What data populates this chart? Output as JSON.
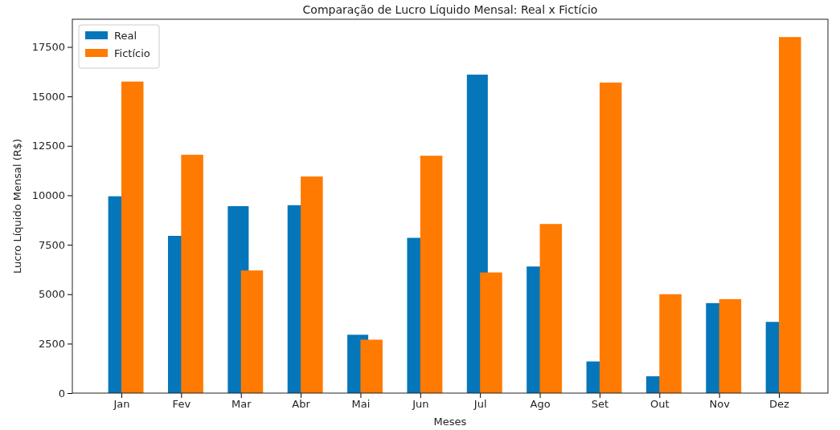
{
  "chart_data": {
    "type": "bar",
    "title": "Comparação de Lucro Líquido Mensal: Real x Fictício",
    "xlabel": "Meses",
    "ylabel": "Lucro Líquido Mensal (R$)",
    "categories": [
      "Jan",
      "Fev",
      "Mar",
      "Abr",
      "Mai",
      "Jun",
      "Jul",
      "Ago",
      "Set",
      "Out",
      "Nov",
      "Dez"
    ],
    "series": [
      {
        "name": "Real",
        "color": "#0476b9",
        "values": [
          9950,
          7950,
          9450,
          9500,
          2950,
          7850,
          16100,
          6400,
          1600,
          850,
          4550,
          3600
        ]
      },
      {
        "name": "Fictício",
        "color": "#ff7a00",
        "values": [
          15750,
          12050,
          6200,
          10950,
          2700,
          12000,
          6100,
          8550,
          15700,
          5000,
          4750,
          18000
        ]
      }
    ],
    "ylim": [
      0,
      18900
    ],
    "yticks": [
      0,
      2500,
      5000,
      7500,
      10000,
      12500,
      15000,
      17500
    ],
    "grid": false,
    "legend": "top left"
  }
}
